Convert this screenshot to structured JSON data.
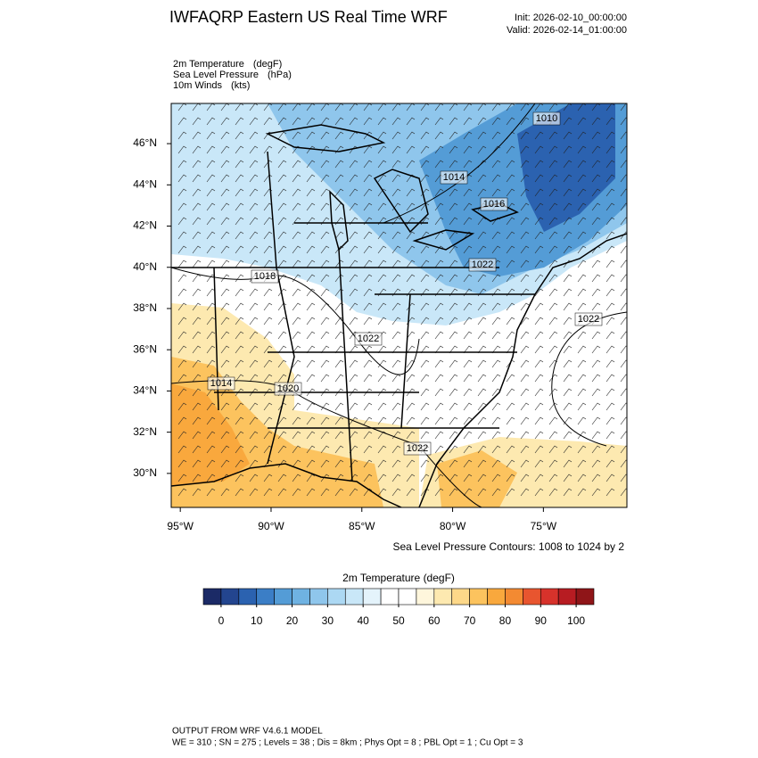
{
  "header": {
    "title": "IWFAQRP Eastern US Real Time WRF",
    "init": "Init: 2026-02-10_00:00:00",
    "valid": "Valid: 2026-02-14_01:00:00"
  },
  "fields": [
    {
      "name": "2m Temperature",
      "unit": "(degF)"
    },
    {
      "name": "Sea Level Pressure",
      "unit": "(hPa)"
    },
    {
      "name": "10m Winds",
      "unit": "(kts)"
    }
  ],
  "map": {
    "xlim": [
      -95.5,
      -70.4
    ],
    "ylim": [
      28.35,
      47.95
    ],
    "xticks": [
      {
        "value": -95,
        "label": "95°W"
      },
      {
        "value": -90,
        "label": "90°W"
      },
      {
        "value": -85,
        "label": "85°W"
      },
      {
        "value": -80,
        "label": "80°W"
      },
      {
        "value": -75,
        "label": "75°W"
      }
    ],
    "yticks": [
      {
        "value": 30,
        "label": "30°N"
      },
      {
        "value": 32,
        "label": "32°N"
      },
      {
        "value": 34,
        "label": "34°N"
      },
      {
        "value": 36,
        "label": "36°N"
      },
      {
        "value": 38,
        "label": "38°N"
      },
      {
        "value": 40,
        "label": "40°N"
      },
      {
        "value": 42,
        "label": "42°N"
      },
      {
        "value": 44,
        "label": "44°N"
      },
      {
        "value": 46,
        "label": "46°N"
      }
    ],
    "contour_labels": [
      "1010",
      "1014",
      "1016",
      "1022",
      "1018",
      "1022",
      "1022",
      "1014",
      "1020",
      "1022"
    ],
    "contour_note": "Sea Level Pressure Contours: 1008 to 1024 by 2"
  },
  "colorbar": {
    "title": "2m Temperature  (degF)",
    "range": [
      -5,
      105
    ],
    "ticks": [
      0,
      10,
      20,
      30,
      40,
      50,
      60,
      70,
      80,
      90,
      100
    ],
    "colors": [
      "#1b2a66",
      "#23458f",
      "#2b62b0",
      "#3b7ec6",
      "#549cd6",
      "#6fb2e2",
      "#8fc6ec",
      "#acd8f3",
      "#c9e7f8",
      "#e4f3fb",
      "#ffffff",
      "#ffffff",
      "#fef6dc",
      "#fde9b0",
      "#fdd889",
      "#fcc35e",
      "#f9a83d",
      "#f38a32",
      "#e8552f",
      "#d7322b",
      "#b71c22",
      "#8f1518"
    ]
  },
  "footer": {
    "line1": "OUTPUT FROM WRF V4.6.1 MODEL",
    "line2": "WE = 310 ; SN = 275 ; Levels = 38 ; Dis = 8km ; Phys Opt = 8 ; PBL Opt = 1 ; Cu Opt = 3"
  }
}
